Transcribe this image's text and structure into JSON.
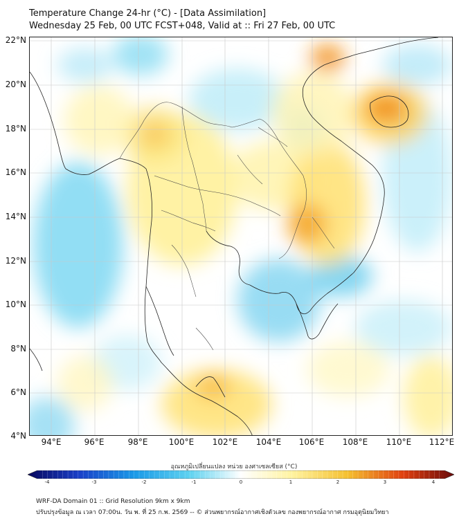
{
  "header": {
    "title": "Temperature Change 24-hr (°C) - [Data Assimilation]",
    "subtitle": "Wednesday 25 Feb, 00 UTC FCST+048, Valid at :: Fri 27 Feb, 00 UTC"
  },
  "map": {
    "lat_labels": [
      "22°N",
      "20°N",
      "18°N",
      "16°N",
      "14°N",
      "12°N",
      "10°N",
      "8°N",
      "6°N",
      "4°N"
    ],
    "lon_labels": [
      "94°E",
      "96°E",
      "98°E",
      "100°E",
      "102°E",
      "104°E",
      "106°E",
      "108°E",
      "110°E",
      "112°E"
    ],
    "lat_range": [
      4,
      22
    ],
    "lon_range": [
      93,
      112.5
    ]
  },
  "colorbar": {
    "title": "อุณหภูมิเปลี่ยนแปลง หน่วย องศาเซลเซียส (°C)",
    "ticks": [
      "-4",
      "-3",
      "-2",
      "-1",
      "0",
      "1",
      "2",
      "3",
      "4"
    ],
    "min": -4,
    "max": 4,
    "colors": {
      "cold_extreme": "#08085e",
      "cold": "#1a6fd8",
      "cool": "#5ed2f0",
      "neutral": "#ffffff",
      "warm": "#fff3a0",
      "hot": "#f08a10",
      "hot_extreme": "#6a0a0a"
    }
  },
  "footer": {
    "line1": "WRF-DA Domain 01 :: Grid Resolution 9km x 9km",
    "line2": "ปรับปรุงข้อมูล ณ เวลา 07:00น. วัน พ. ที่ 25 ก.พ. 2569 -- © ส่วนพยากรณ์อากาศเชิงตัวเลข กองพยากรณ์อากาศ กรมอุตุนิยมวิทยา"
  }
}
